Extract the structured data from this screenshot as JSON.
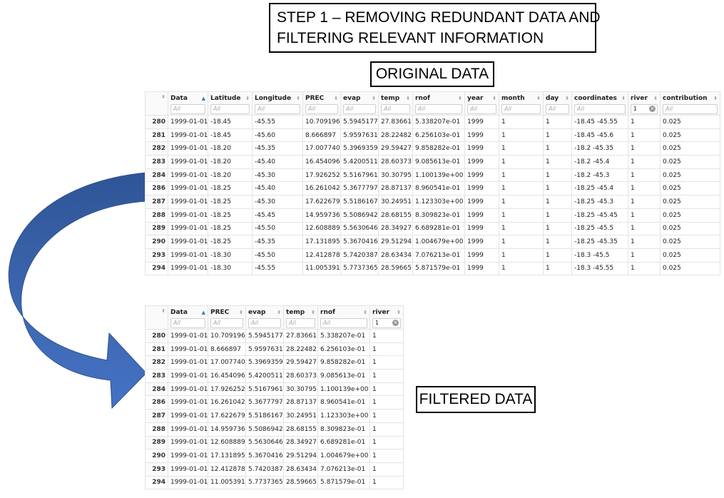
{
  "title_lines": [
    "STEP 1 – REMOVING REDUNDANT DATA AND",
    "FILTERING RELEVANT INFORMATION"
  ],
  "original_label": "ORIGINAL DATA",
  "filtered_label": "FILTERED DATA",
  "colors": {
    "arrow_light": "#4472c4",
    "arrow_dark": "#2f5597",
    "sort_active": "#3a78c3"
  },
  "original_table": {
    "columns": [
      "Data",
      "Latitude",
      "Longitude",
      "PREC",
      "evap",
      "temp",
      "rnof",
      "year",
      "month",
      "day",
      "coordinates",
      "river",
      "contribution"
    ],
    "filters": [
      "All",
      "All",
      "All",
      "All",
      "All",
      "All",
      "All",
      "All",
      "All",
      "All",
      "All",
      "1",
      "All"
    ],
    "sorted_column": "Data",
    "rows": [
      [
        "280",
        "1999-01-01",
        "-18.45",
        "-45.55",
        "10.709196",
        "5.5945177",
        "27.83661",
        "5.338207e-01",
        "1999",
        "1",
        "1",
        "-18.45 -45.55",
        "1",
        "0.025"
      ],
      [
        "281",
        "1999-01-01",
        "-18.45",
        "-45.60",
        "8.666897",
        "5.9597631",
        "28.22482",
        "6.256103e-01",
        "1999",
        "1",
        "1",
        "-18.45 -45.6",
        "1",
        "0.025"
      ],
      [
        "282",
        "1999-01-01",
        "-18.20",
        "-45.35",
        "17.007740",
        "5.3969359",
        "29.59427",
        "9.858282e-01",
        "1999",
        "1",
        "1",
        "-18.2 -45.35",
        "1",
        "0.025"
      ],
      [
        "283",
        "1999-01-01",
        "-18.20",
        "-45.40",
        "16.454096",
        "5.4200511",
        "28.60373",
        "9.085613e-01",
        "1999",
        "1",
        "1",
        "-18.2 -45.4",
        "1",
        "0.025"
      ],
      [
        "284",
        "1999-01-01",
        "-18.20",
        "-45.30",
        "17.926252",
        "5.5167961",
        "30.30795",
        "1.100139e+00",
        "1999",
        "1",
        "1",
        "-18.2 -45.3",
        "1",
        "0.025"
      ],
      [
        "286",
        "1999-01-01",
        "-18.25",
        "-45.40",
        "16.261042",
        "5.3677797",
        "28.87137",
        "8.960541e-01",
        "1999",
        "1",
        "1",
        "-18.25 -45.4",
        "1",
        "0.025"
      ],
      [
        "287",
        "1999-01-01",
        "-18.25",
        "-45.30",
        "17.622679",
        "5.5186167",
        "30.24951",
        "1.123303e+00",
        "1999",
        "1",
        "1",
        "-18.25 -45.3",
        "1",
        "0.025"
      ],
      [
        "288",
        "1999-01-01",
        "-18.25",
        "-45.45",
        "14.959736",
        "5.5086942",
        "28.68155",
        "8.309823e-01",
        "1999",
        "1",
        "1",
        "-18.25 -45.45",
        "1",
        "0.025"
      ],
      [
        "289",
        "1999-01-01",
        "-18.25",
        "-45.50",
        "12.608889",
        "5.5630646",
        "28.34927",
        "6.689281e-01",
        "1999",
        "1",
        "1",
        "-18.25 -45.5",
        "1",
        "0.025"
      ],
      [
        "290",
        "1999-01-01",
        "-18.25",
        "-45.35",
        "17.131895",
        "5.3670416",
        "29.51294",
        "1.004679e+00",
        "1999",
        "1",
        "1",
        "-18.25 -45.35",
        "1",
        "0.025"
      ],
      [
        "293",
        "1999-01-01",
        "-18.30",
        "-45.50",
        "12.412878",
        "5.7420387",
        "28.63434",
        "7.076213e-01",
        "1999",
        "1",
        "1",
        "-18.3 -45.5",
        "1",
        "0.025"
      ],
      [
        "294",
        "1999-01-01",
        "-18.30",
        "-45.55",
        "11.005391",
        "5.7737365",
        "28.59665",
        "5.871579e-01",
        "1999",
        "1",
        "1",
        "-18.3 -45.55",
        "1",
        "0.025"
      ]
    ]
  },
  "filtered_table": {
    "columns": [
      "Data",
      "PREC",
      "evap",
      "temp",
      "rnof",
      "river"
    ],
    "filters": [
      "All",
      "All",
      "All",
      "All",
      "All",
      "1"
    ],
    "sorted_column": "Data",
    "rows": [
      [
        "280",
        "1999-01-01",
        "10.709196",
        "5.5945177",
        "27.83661",
        "5.338207e-01",
        "1"
      ],
      [
        "281",
        "1999-01-01",
        "8.666897",
        "5.9597631",
        "28.22482",
        "6.256103e-01",
        "1"
      ],
      [
        "282",
        "1999-01-01",
        "17.007740",
        "5.3969359",
        "29.59427",
        "9.858282e-01",
        "1"
      ],
      [
        "283",
        "1999-01-01",
        "16.454096",
        "5.4200511",
        "28.60373",
        "9.085613e-01",
        "1"
      ],
      [
        "284",
        "1999-01-01",
        "17.926252",
        "5.5167961",
        "30.30795",
        "1.100139e+00",
        "1"
      ],
      [
        "286",
        "1999-01-01",
        "16.261042",
        "5.3677797",
        "28.87137",
        "8.960541e-01",
        "1"
      ],
      [
        "287",
        "1999-01-01",
        "17.622679",
        "5.5186167",
        "30.24951",
        "1.123303e+00",
        "1"
      ],
      [
        "288",
        "1999-01-01",
        "14.959736",
        "5.5086942",
        "28.68155",
        "8.309823e-01",
        "1"
      ],
      [
        "289",
        "1999-01-01",
        "12.608889",
        "5.5630646",
        "28.34927",
        "6.689281e-01",
        "1"
      ],
      [
        "290",
        "1999-01-01",
        "17.131895",
        "5.3670416",
        "29.51294",
        "1.004679e+00",
        "1"
      ],
      [
        "293",
        "1999-01-01",
        "12.412878",
        "5.7420387",
        "28.63434",
        "7.076213e-01",
        "1"
      ],
      [
        "294",
        "1999-01-01",
        "11.005391",
        "5.7737365",
        "28.59665",
        "5.871579e-01",
        "1"
      ]
    ]
  }
}
